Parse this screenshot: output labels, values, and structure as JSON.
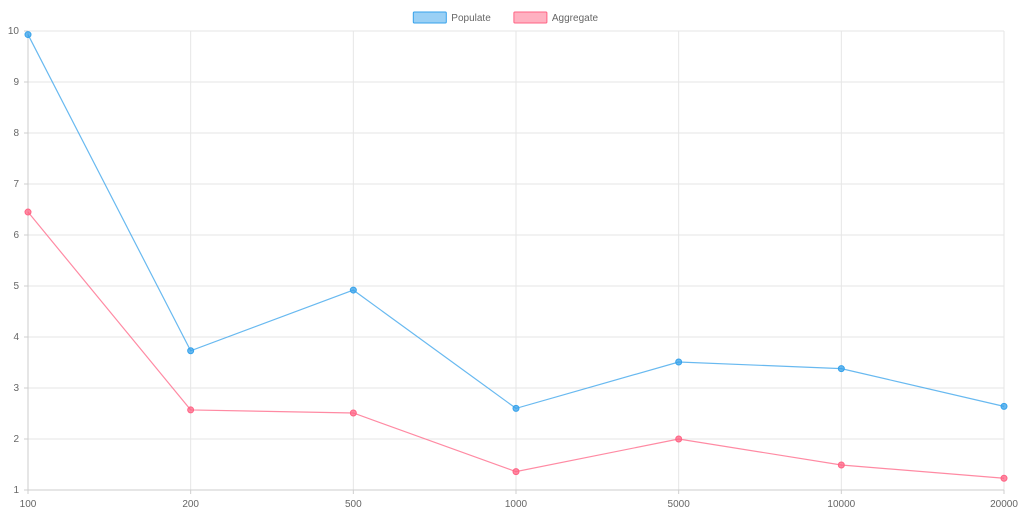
{
  "chart_data": {
    "type": "line",
    "categories": [
      "100",
      "200",
      "500",
      "1000",
      "5000",
      "10000",
      "20000"
    ],
    "y_ticks": [
      "1",
      "2",
      "3",
      "4",
      "5",
      "6",
      "7",
      "8",
      "9",
      "10"
    ],
    "ylim": [
      1,
      10
    ],
    "grid": true,
    "legend_position": "top-center",
    "series": [
      {
        "name": "Populate",
        "color": "#36a2eb",
        "values": [
          9.93,
          3.73,
          4.92,
          2.6,
          3.51,
          3.38,
          2.64
        ]
      },
      {
        "name": "Aggregate",
        "color": "#ff6384",
        "values": [
          6.45,
          2.57,
          2.51,
          1.36,
          2.0,
          1.49,
          1.23
        ]
      }
    ]
  }
}
